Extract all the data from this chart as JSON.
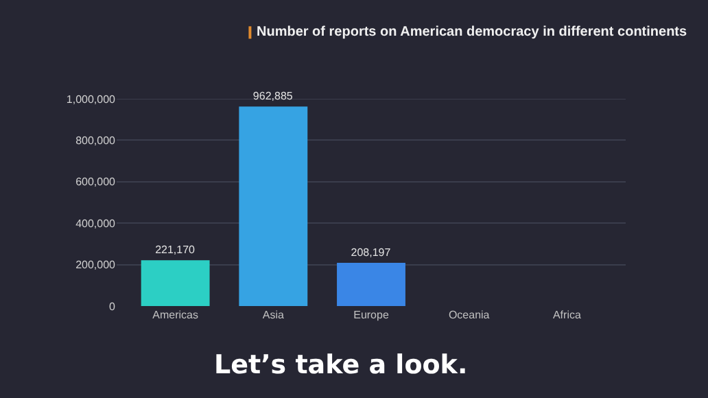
{
  "chart_data": {
    "type": "bar",
    "title": "Number of reports on American democracy in different continents",
    "categories": [
      "Americas",
      "Asia",
      "Europe",
      "Oceania",
      "Africa"
    ],
    "values": [
      221170,
      962885,
      208197,
      null,
      null
    ],
    "colors": [
      "#2ccfc4",
      "#36a3e3",
      "#3a86e6",
      "#3a86e6",
      "#3a86e6"
    ],
    "value_labels": [
      "221,170",
      "962,885",
      "208,197",
      null,
      null
    ],
    "ylim": [
      0,
      1000000
    ],
    "yticks": [
      {
        "value": 0,
        "label": "0"
      },
      {
        "value": 200000,
        "label": "200,000"
      },
      {
        "value": 400000,
        "label": "400,000"
      },
      {
        "value": 600000,
        "label": "600,000"
      },
      {
        "value": 800000,
        "label": "800,000"
      },
      {
        "value": 1000000,
        "label": "1,000,000"
      }
    ],
    "grid": "y",
    "annotations": [
      "Let’s take a look."
    ]
  }
}
